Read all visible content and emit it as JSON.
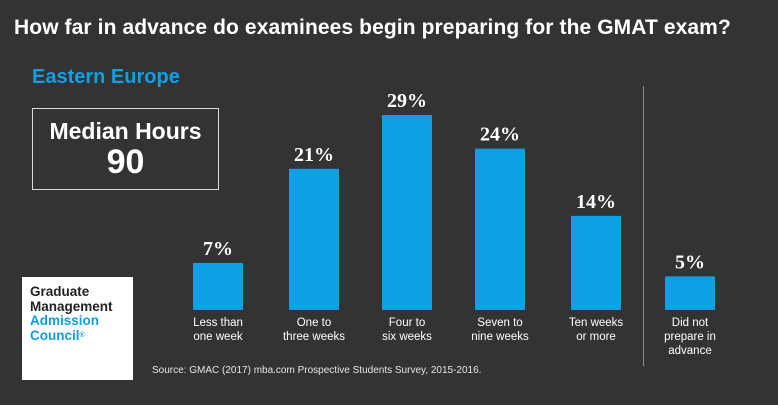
{
  "title": "How far in advance do examinees begin preparing for the GMAT exam?",
  "region": "Eastern Europe",
  "median": {
    "label": "Median Hours",
    "value": "90"
  },
  "logo": {
    "line1": "Graduate",
    "line2": "Management",
    "line3": "Admission",
    "line4": "Council",
    "mark": "®"
  },
  "source": "Source: GMAC (2017) mba.com Prospective Students Survey, 2015-2016.",
  "colors": {
    "background": "#333333",
    "bar": "#0f9fe3",
    "accent": "#0f9fe3"
  },
  "chart_data": {
    "type": "bar",
    "title": "How far in advance do examinees begin preparing for the GMAT exam?",
    "categories": [
      [
        "Less than",
        "one week"
      ],
      [
        "One to",
        "three weeks"
      ],
      [
        "Four to",
        "six weeks"
      ],
      [
        "Seven to",
        "nine weeks"
      ],
      [
        "Ten weeks",
        "or more"
      ],
      [
        "Did not",
        "prepare in",
        "advance"
      ]
    ],
    "values": [
      7,
      21,
      29,
      24,
      14,
      5
    ],
    "value_labels": [
      "7%",
      "21%",
      "29%",
      "24%",
      "14%",
      "5%"
    ],
    "ylim": [
      0,
      29
    ],
    "xlabel": "",
    "ylabel": "",
    "grid": false
  }
}
